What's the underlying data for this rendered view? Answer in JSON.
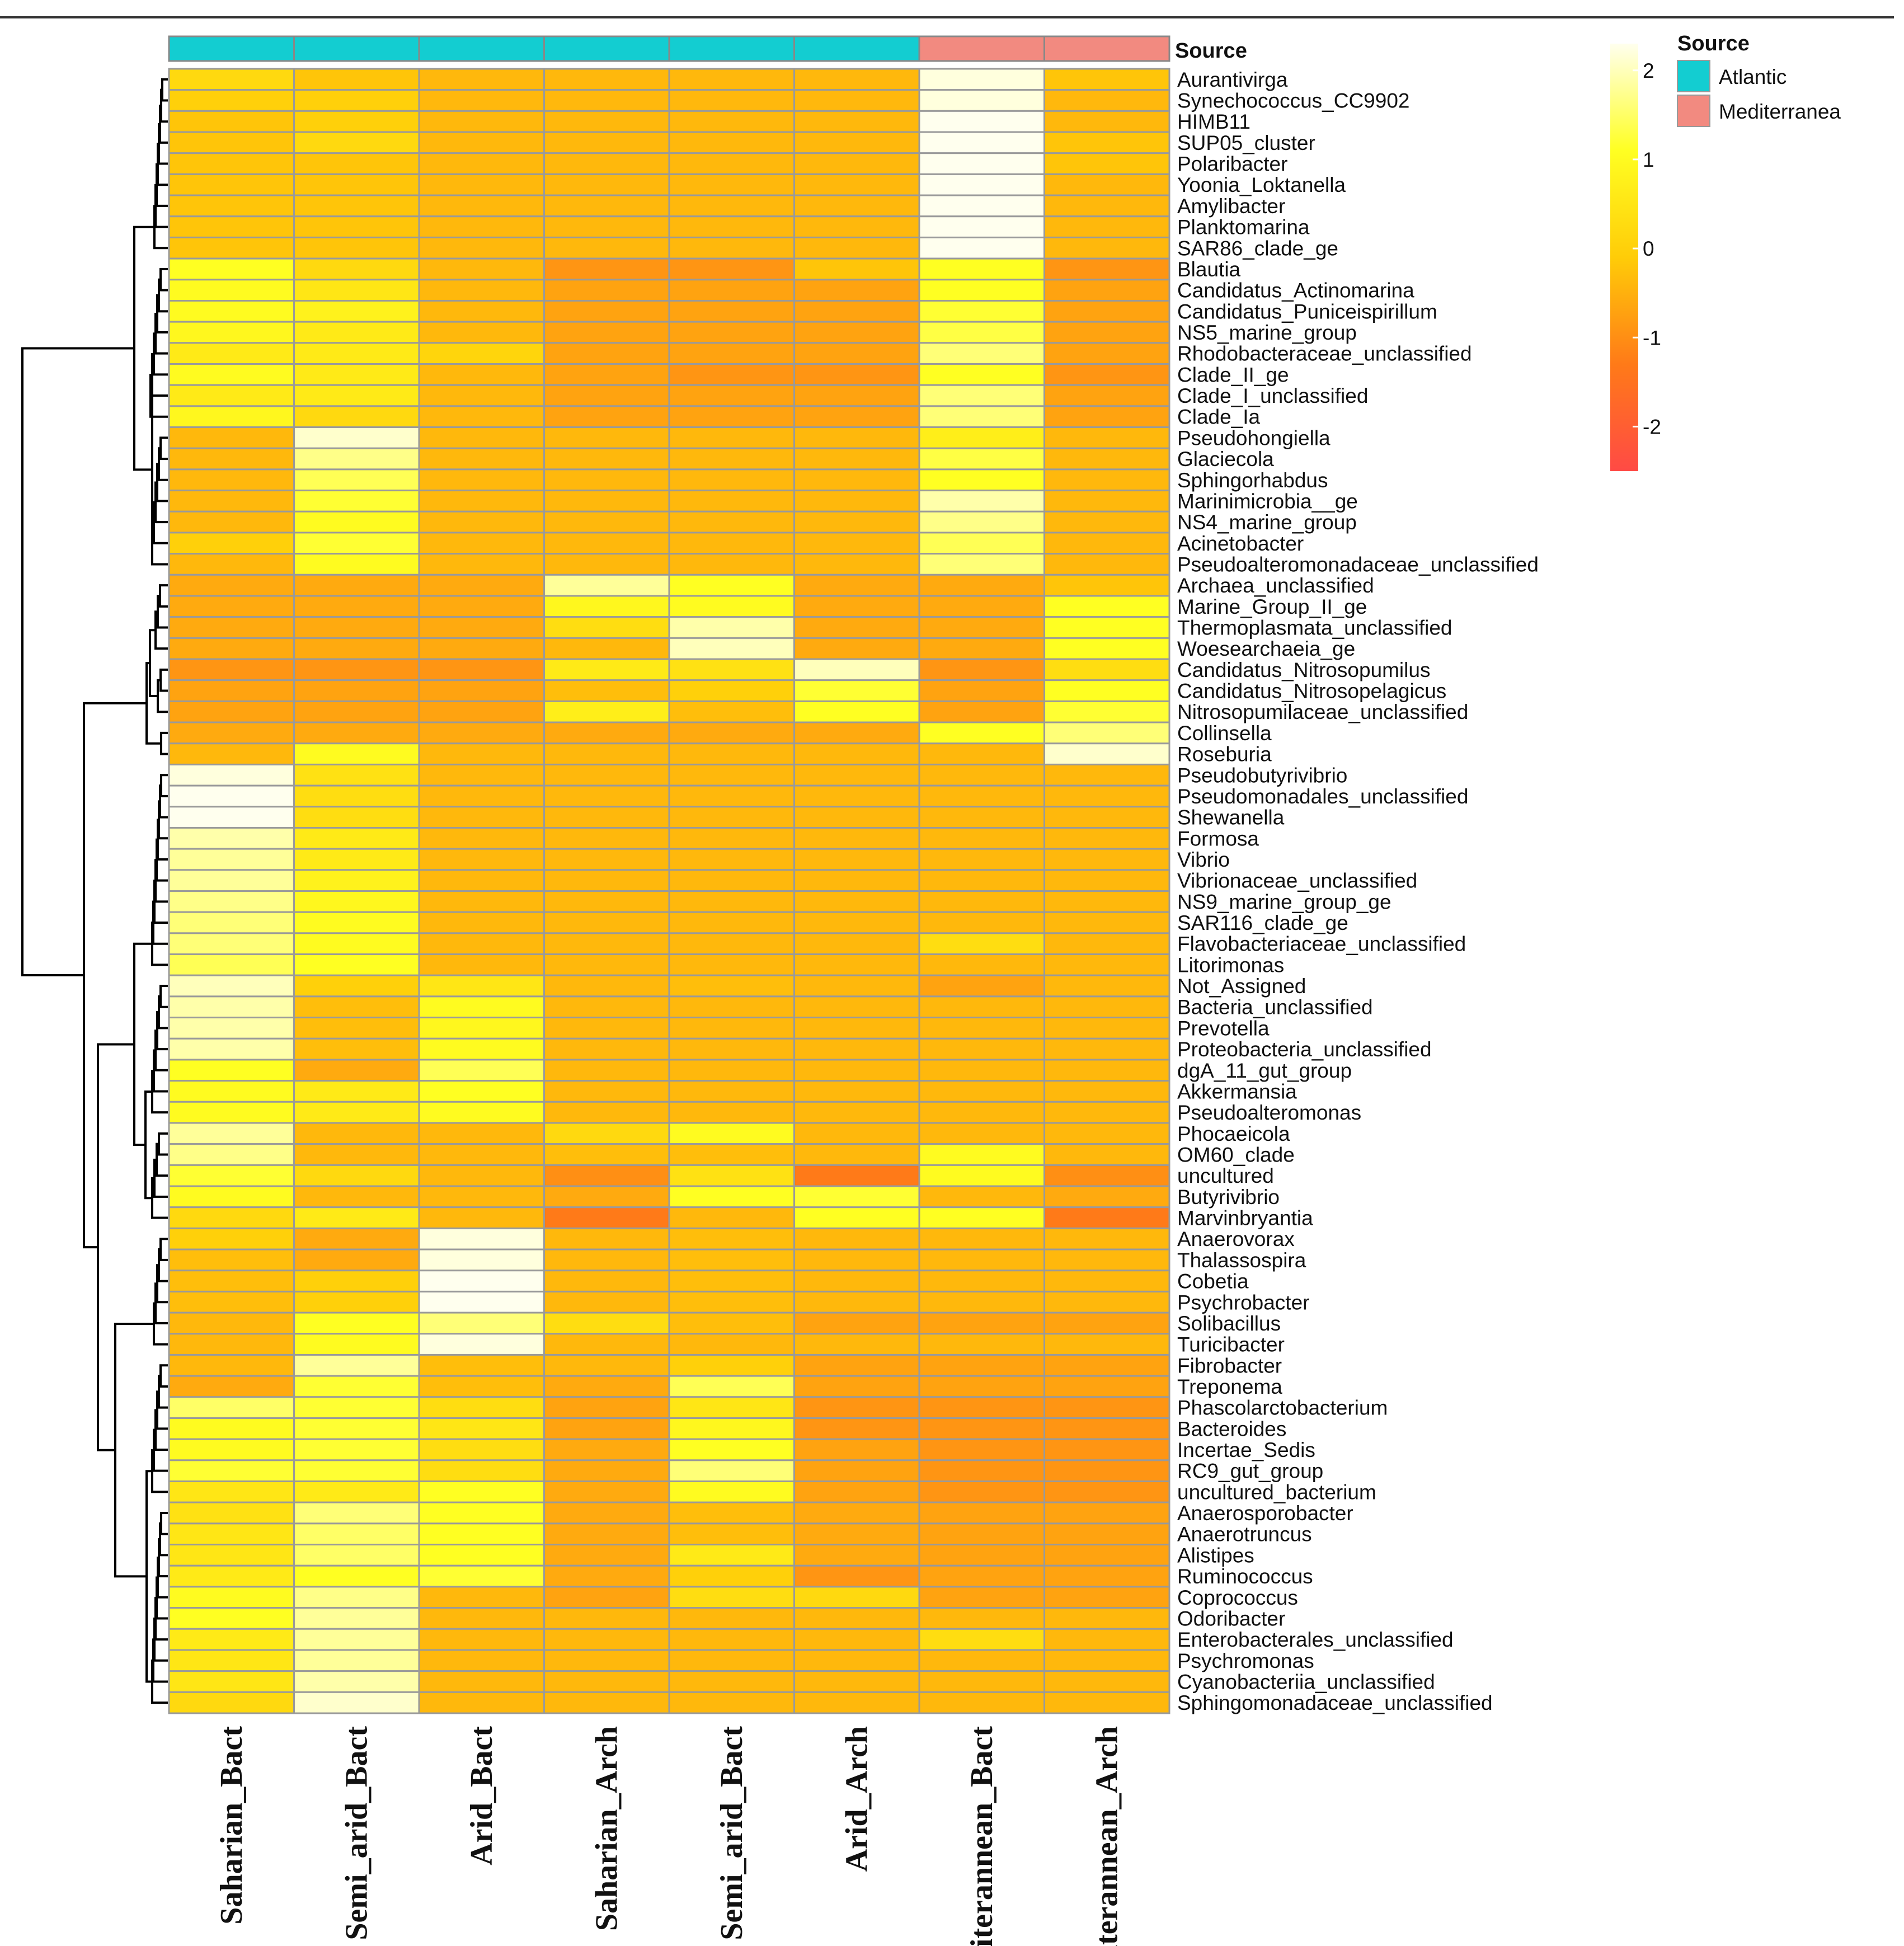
{
  "chart_data": {
    "type": "heatmap",
    "columns": [
      "Saharian_Bact",
      "Semi_arid_Bact",
      "Arid_Bact",
      "Saharian_Arch",
      "Semi_arid_Bact",
      "Arid_Arch",
      "Mediterannean_Bact",
      "Mediterannean_Arch"
    ],
    "column_source": [
      "Atlantic",
      "Atlantic",
      "Atlantic",
      "Atlantic",
      "Atlantic",
      "Atlantic",
      "Mediterranea",
      "Mediterranea"
    ],
    "annotation_title": "Source",
    "legend": {
      "title": "Source",
      "items": [
        {
          "label": "Atlantic",
          "color": "#13cdd1"
        },
        {
          "label": "Mediterranea",
          "color": "#f28a80"
        }
      ]
    },
    "color_scale": {
      "ticks": [
        "2",
        "1",
        "0",
        "-1",
        "-2"
      ],
      "tick_values": [
        2,
        1,
        0,
        -1,
        -2
      ],
      "min": -2.5,
      "max": 2.3,
      "stops": [
        "#ff4a45",
        "#ff7a18",
        "#ffcc08",
        "#ffff22",
        "#ffffee"
      ]
    },
    "rows": [
      "Aurantivirga",
      "Synechococcus_CC9902",
      "HIMB11",
      "SUP05_cluster",
      "Polaribacter",
      "Yoonia_Loktanella",
      "Amylibacter",
      "Planktomarina",
      "SAR86_clade_ge",
      "Blautia",
      "Candidatus_Actinomarina",
      "Candidatus_Puniceispirillum",
      "NS5_marine_group",
      "Rhodobacteraceae_unclassified",
      "Clade_II_ge",
      "Clade_I_unclassified",
      "Clade_Ia",
      "Pseudohongiella",
      "Glaciecola",
      "Sphingorhabdus",
      "Marinimicrobia__ge",
      "NS4_marine_group",
      "Acinetobacter",
      "Pseudoalteromonadaceae_unclassified",
      "Archaea_unclassified",
      "Marine_Group_II_ge",
      "Thermoplasmata_unclassified",
      "Woesearchaeia_ge",
      "Candidatus_Nitrosopumilus",
      "Candidatus_Nitrosopelagicus",
      "Nitrosopumilaceae_unclassified",
      "Collinsella",
      "Roseburia",
      "Pseudobutyrivibrio",
      "Pseudomonadales_unclassified",
      "Shewanella",
      "Formosa",
      "Vibrio",
      "Vibrionaceae_unclassified",
      "NS9_marine_group_ge",
      "SAR116_clade_ge",
      "Flavobacteriaceae_unclassified",
      "Litorimonas",
      "Not_Assigned",
      "Bacteria_unclassified",
      "Prevotella",
      "Proteobacteria_unclassified",
      "dgA_11_gut_group",
      "Akkermansia",
      "Pseudoalteromonas",
      "Phocaeicola",
      "OM60_clade",
      "uncultured",
      "Butyrivibrio",
      "Marvinbryantia",
      "Anaerovorax",
      "Thalassospira",
      "Cobetia",
      "Psychrobacter",
      "Solibacillus",
      "Turicibacter",
      "Fibrobacter",
      "Treponema",
      "Phascolarctobacterium",
      "Bacteroides",
      "Incertae_Sedis",
      "RC9_gut_group",
      "uncultured_bacterium",
      "Anaerosporobacter",
      "Anaerotruncus",
      "Alistipes",
      "Ruminococcus",
      "Coprococcus",
      "Odoribacter",
      "Enterobacterales_unclassified",
      "Psychromonas",
      "Cyanobacteriia_unclassified",
      "Sphingomonadaceae_unclassified"
    ],
    "values": [
      [
        0.2,
        -0.2,
        -0.4,
        -0.4,
        -0.4,
        -0.4,
        2.2,
        -0.2
      ],
      [
        0.0,
        0.0,
        -0.4,
        -0.4,
        -0.4,
        -0.4,
        2.2,
        -0.4
      ],
      [
        -0.2,
        0.0,
        -0.4,
        -0.4,
        -0.4,
        -0.4,
        2.3,
        -0.4
      ],
      [
        -0.2,
        0.2,
        -0.4,
        -0.4,
        -0.4,
        -0.4,
        2.3,
        -0.2
      ],
      [
        -0.2,
        -0.2,
        -0.4,
        -0.4,
        -0.4,
        -0.4,
        2.3,
        -0.2
      ],
      [
        -0.2,
        -0.2,
        -0.4,
        -0.4,
        -0.4,
        -0.4,
        2.3,
        -0.4
      ],
      [
        -0.2,
        -0.2,
        -0.4,
        -0.4,
        -0.4,
        -0.4,
        2.3,
        -0.4
      ],
      [
        -0.2,
        -0.2,
        -0.4,
        -0.4,
        -0.4,
        -0.4,
        2.3,
        -0.4
      ],
      [
        -0.2,
        -0.2,
        -0.4,
        -0.4,
        -0.4,
        -0.4,
        2.3,
        -0.4
      ],
      [
        1.1,
        0.2,
        -0.4,
        -0.9,
        -0.9,
        -0.2,
        1.1,
        -0.9
      ],
      [
        1.0,
        0.5,
        -0.4,
        -0.7,
        -0.7,
        -0.7,
        1.1,
        -0.7
      ],
      [
        1.0,
        0.8,
        -0.4,
        -0.7,
        -0.7,
        -0.7,
        1.2,
        -0.7
      ],
      [
        0.9,
        0.6,
        -0.4,
        -0.7,
        -0.7,
        -0.7,
        1.3,
        -0.7
      ],
      [
        0.6,
        0.6,
        0.1,
        -0.7,
        -0.7,
        -0.7,
        1.6,
        -0.7
      ],
      [
        1.0,
        0.6,
        -0.4,
        -0.7,
        -0.9,
        -0.9,
        1.1,
        -0.9
      ],
      [
        0.6,
        0.6,
        -0.4,
        -0.7,
        -0.7,
        -0.7,
        1.6,
        -0.7
      ],
      [
        0.9,
        0.2,
        -0.4,
        -0.7,
        -0.7,
        -0.7,
        1.6,
        -0.7
      ],
      [
        -0.4,
        2.1,
        -0.4,
        -0.4,
        -0.4,
        -0.4,
        0.7,
        -0.4
      ],
      [
        -0.4,
        1.7,
        -0.4,
        -0.4,
        -0.4,
        -0.4,
        1.3,
        -0.4
      ],
      [
        -0.4,
        1.4,
        -0.4,
        -0.4,
        -0.4,
        -0.4,
        1.1,
        -0.4
      ],
      [
        -0.4,
        1.2,
        -0.4,
        -0.4,
        -0.4,
        -0.4,
        1.9,
        -0.4
      ],
      [
        -0.4,
        1.0,
        -0.4,
        -0.4,
        -0.4,
        -0.4,
        1.7,
        -0.4
      ],
      [
        0.0,
        1.2,
        -0.4,
        -0.4,
        -0.4,
        -0.4,
        1.4,
        -0.4
      ],
      [
        -0.4,
        1.0,
        -0.4,
        -0.4,
        -0.4,
        -0.4,
        1.6,
        -0.4
      ],
      [
        -0.6,
        -0.6,
        -0.6,
        1.8,
        1.1,
        -0.6,
        -0.6,
        -0.2
      ],
      [
        -0.6,
        -0.6,
        -0.6,
        0.9,
        1.0,
        -0.6,
        -0.6,
        1.1
      ],
      [
        -0.6,
        -0.6,
        -0.6,
        0.3,
        1.9,
        -0.6,
        -0.6,
        1.1
      ],
      [
        -0.6,
        -0.6,
        -0.6,
        -0.4,
        2.0,
        -0.6,
        -0.6,
        1.1
      ],
      [
        -0.9,
        -0.9,
        -0.9,
        0.6,
        0.4,
        2.0,
        -0.9,
        0.3
      ],
      [
        -0.7,
        -0.7,
        -0.7,
        -0.3,
        0.0,
        1.2,
        -0.7,
        1.1
      ],
      [
        -0.7,
        -0.7,
        -0.7,
        0.7,
        -0.3,
        1.1,
        -0.7,
        1.2
      ],
      [
        -0.6,
        -0.6,
        -0.6,
        -0.6,
        -0.6,
        -0.6,
        1.1,
        1.6
      ],
      [
        -0.4,
        1.0,
        -0.4,
        -0.4,
        -0.4,
        -0.4,
        -0.4,
        2.1
      ],
      [
        2.2,
        0.4,
        -0.4,
        -0.4,
        -0.4,
        -0.4,
        -0.4,
        -0.4
      ],
      [
        2.3,
        0.3,
        -0.4,
        -0.4,
        -0.4,
        -0.4,
        -0.4,
        -0.4
      ],
      [
        2.3,
        0.3,
        -0.4,
        -0.4,
        -0.4,
        -0.4,
        -0.4,
        -0.4
      ],
      [
        1.9,
        0.6,
        -0.4,
        -0.4,
        -0.4,
        -0.4,
        -0.4,
        -0.4
      ],
      [
        1.8,
        0.6,
        -0.4,
        -0.4,
        -0.4,
        -0.4,
        -0.4,
        -0.4
      ],
      [
        1.8,
        0.8,
        -0.4,
        -0.4,
        -0.4,
        -0.4,
        -0.4,
        -0.4
      ],
      [
        1.7,
        0.9,
        -0.4,
        -0.4,
        -0.4,
        -0.4,
        -0.4,
        -0.4
      ],
      [
        1.6,
        1.0,
        -0.4,
        -0.4,
        -0.4,
        -0.4,
        -0.4,
        -0.4
      ],
      [
        1.6,
        1.0,
        -0.4,
        -0.4,
        -0.4,
        -0.4,
        0.3,
        -0.4
      ],
      [
        1.4,
        1.1,
        -0.4,
        -0.4,
        -0.4,
        -0.4,
        -0.4,
        -0.4
      ],
      [
        2.0,
        0.0,
        0.5,
        -0.4,
        -0.3,
        -0.4,
        -0.7,
        -0.4
      ],
      [
        1.9,
        -0.3,
        1.0,
        -0.4,
        -0.4,
        -0.4,
        -0.4,
        -0.4
      ],
      [
        1.9,
        -0.3,
        0.9,
        -0.4,
        -0.4,
        -0.4,
        -0.4,
        -0.4
      ],
      [
        1.9,
        -0.3,
        1.0,
        -0.4,
        -0.4,
        -0.4,
        -0.4,
        -0.4
      ],
      [
        1.1,
        -0.6,
        1.4,
        -0.4,
        -0.4,
        -0.4,
        -0.4,
        -0.4
      ],
      [
        1.0,
        0.6,
        1.1,
        -0.4,
        -0.4,
        -0.4,
        -0.4,
        -0.4
      ],
      [
        1.0,
        0.6,
        1.0,
        -0.4,
        -0.4,
        -0.4,
        -0.4,
        -0.4
      ],
      [
        1.8,
        -0.4,
        -0.4,
        0.2,
        1.0,
        -0.4,
        -0.4,
        -0.4
      ],
      [
        1.7,
        -0.4,
        -0.4,
        -0.3,
        -0.3,
        -0.4,
        1.0,
        -0.4
      ],
      [
        1.2,
        0.2,
        -0.4,
        -1.0,
        0.4,
        -1.3,
        1.0,
        -1.0
      ],
      [
        1.0,
        -0.4,
        -0.4,
        -0.6,
        1.1,
        1.2,
        -0.4,
        -0.6
      ],
      [
        0.2,
        0.6,
        -0.4,
        -1.3,
        -0.4,
        1.1,
        1.1,
        -1.3
      ],
      [
        0.0,
        -0.6,
        2.2,
        -0.4,
        -0.3,
        -0.4,
        -0.4,
        -0.4
      ],
      [
        -0.3,
        -0.6,
        2.2,
        -0.4,
        -0.3,
        -0.4,
        -0.4,
        -0.4
      ],
      [
        -0.3,
        0.0,
        2.3,
        -0.4,
        -0.3,
        -0.4,
        -0.4,
        -0.4
      ],
      [
        -0.3,
        0.0,
        2.3,
        -0.4,
        -0.3,
        -0.4,
        -0.4,
        -0.4
      ],
      [
        -0.4,
        1.1,
        1.6,
        0.3,
        -0.3,
        -0.7,
        -0.7,
        -0.7
      ],
      [
        -0.4,
        1.0,
        2.2,
        -0.4,
        -0.4,
        -0.4,
        -0.4,
        -0.4
      ],
      [
        -0.4,
        1.8,
        -0.3,
        -0.4,
        0.0,
        -0.7,
        -0.7,
        -0.7
      ],
      [
        -0.6,
        1.2,
        -0.3,
        -0.6,
        1.4,
        -0.7,
        -0.7,
        -0.7
      ],
      [
        1.5,
        1.2,
        0.3,
        -0.7,
        0.5,
        -0.9,
        -0.9,
        -0.9
      ],
      [
        1.0,
        1.2,
        0.5,
        -0.7,
        0.9,
        -0.9,
        -0.9,
        -0.9
      ],
      [
        1.0,
        1.2,
        0.3,
        -0.6,
        1.1,
        -0.7,
        -0.9,
        -0.9
      ],
      [
        1.2,
        1.2,
        0.3,
        -0.6,
        1.6,
        -0.7,
        -0.9,
        -0.9
      ],
      [
        0.5,
        0.6,
        1.1,
        -0.6,
        1.0,
        -0.7,
        -0.9,
        -0.9
      ],
      [
        0.4,
        1.6,
        1.1,
        -0.6,
        -0.3,
        -0.6,
        -0.7,
        -0.7
      ],
      [
        0.5,
        1.5,
        1.1,
        -0.6,
        -0.3,
        -0.6,
        -0.7,
        -0.7
      ],
      [
        0.5,
        1.5,
        1.1,
        -0.6,
        0.6,
        -0.6,
        -0.7,
        -0.7
      ],
      [
        0.6,
        1.1,
        1.2,
        -0.6,
        0.0,
        -0.9,
        -0.7,
        -0.7
      ],
      [
        1.0,
        1.7,
        -0.4,
        -0.7,
        0.3,
        0.2,
        -0.7,
        -0.7
      ],
      [
        1.1,
        1.8,
        -0.4,
        -0.4,
        -0.4,
        -0.4,
        -0.4,
        -0.4
      ],
      [
        0.6,
        1.8,
        -0.4,
        -0.4,
        -0.4,
        -0.4,
        0.3,
        -0.4
      ],
      [
        0.5,
        1.8,
        -0.4,
        -0.4,
        -0.4,
        -0.4,
        -0.4,
        -0.4
      ],
      [
        0.5,
        1.9,
        -0.4,
        -0.4,
        -0.4,
        -0.4,
        -0.4,
        -0.4
      ],
      [
        0.2,
        2.1,
        -0.4,
        -0.4,
        -0.4,
        -0.4,
        -0.4,
        -0.4
      ]
    ]
  }
}
